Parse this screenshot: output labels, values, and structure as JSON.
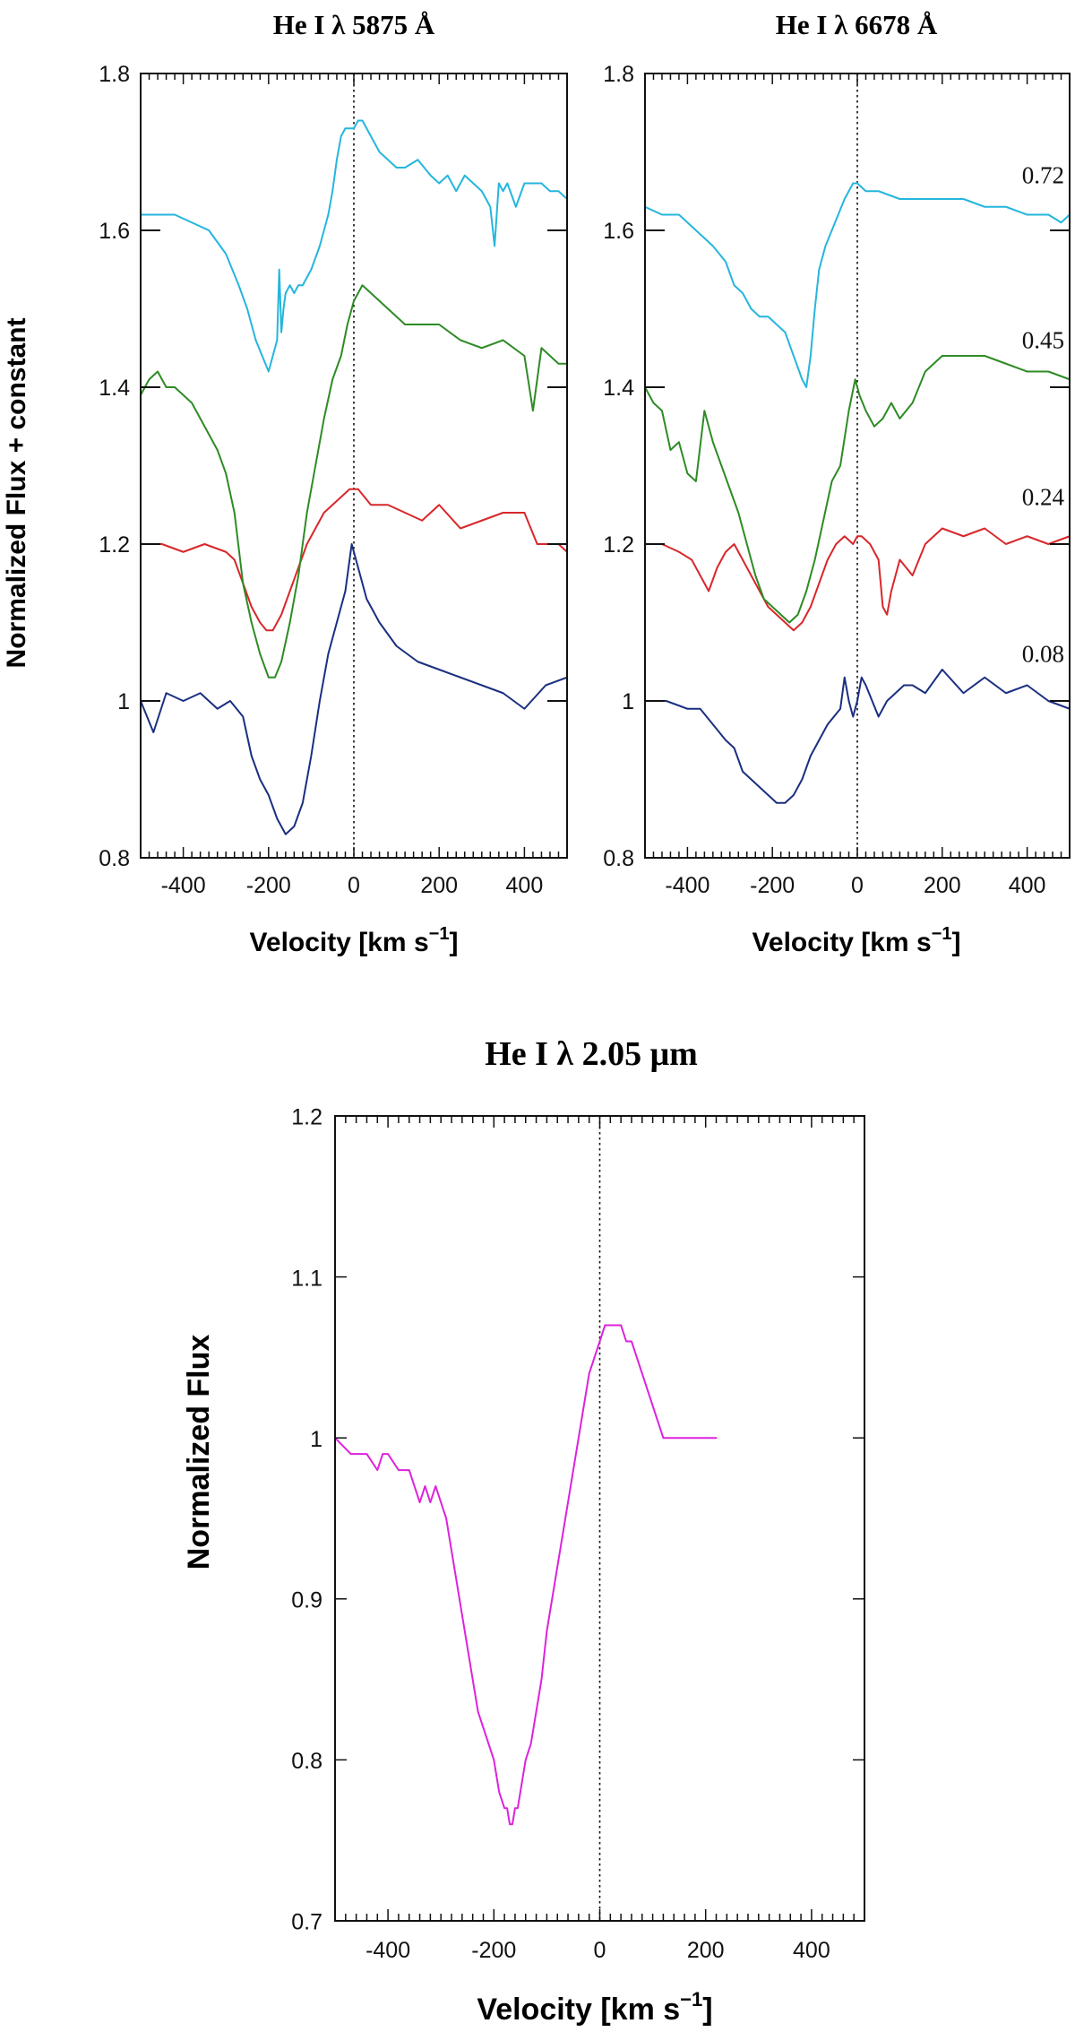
{
  "chart_data": [
    {
      "id": "he5875",
      "type": "line",
      "title": "He I λ 5875 Å",
      "xlabel": "Velocity [km s",
      "xlabel_sup": "−1",
      "xlabel_tail": "]",
      "ylabel": "Normalized Flux + constant",
      "xlim": [
        -500,
        500
      ],
      "ylim": [
        0.8,
        1.8
      ],
      "xticks": [
        -400,
        -200,
        0,
        200,
        400
      ],
      "xtick_labels": [
        "-400",
        "-200",
        "0",
        "200",
        "400"
      ],
      "yticks": [
        0.8,
        1.0,
        1.2,
        1.4,
        1.6,
        1.8
      ],
      "ytick_labels": [
        "0.8",
        "1",
        "1.2",
        "1.4",
        "1.6",
        "1.8"
      ],
      "vline_x": 0,
      "offset_markers": [
        1.0,
        1.2,
        1.4,
        1.6
      ],
      "series": [
        {
          "color": "#1a2f80",
          "offset": 0.0,
          "x": [
            -500,
            -470,
            -440,
            -400,
            -360,
            -320,
            -290,
            -260,
            -240,
            -220,
            -200,
            -180,
            -160,
            -140,
            -120,
            -100,
            -80,
            -60,
            -40,
            -20,
            -5,
            10,
            30,
            60,
            100,
            150,
            200,
            250,
            300,
            350,
            400,
            450,
            500
          ],
          "y": [
            1.0,
            0.96,
            1.01,
            1.0,
            1.01,
            0.99,
            1.0,
            0.98,
            0.93,
            0.9,
            0.88,
            0.85,
            0.83,
            0.84,
            0.87,
            0.93,
            1.0,
            1.06,
            1.1,
            1.14,
            1.2,
            1.17,
            1.13,
            1.1,
            1.07,
            1.05,
            1.04,
            1.03,
            1.02,
            1.01,
            0.99,
            1.02,
            1.03
          ]
        },
        {
          "color": "#d8272a",
          "offset": 0.0,
          "x": [
            -500,
            -450,
            -400,
            -350,
            -300,
            -280,
            -260,
            -240,
            -220,
            -205,
            -190,
            -170,
            -150,
            -130,
            -110,
            -90,
            -70,
            -50,
            -30,
            -10,
            10,
            40,
            80,
            120,
            160,
            200,
            250,
            300,
            350,
            380,
            400,
            430,
            460,
            480,
            500
          ],
          "y": [
            1.2,
            1.2,
            1.19,
            1.2,
            1.19,
            1.18,
            1.15,
            1.12,
            1.1,
            1.09,
            1.09,
            1.11,
            1.14,
            1.17,
            1.2,
            1.22,
            1.24,
            1.25,
            1.26,
            1.27,
            1.27,
            1.25,
            1.25,
            1.24,
            1.23,
            1.25,
            1.22,
            1.23,
            1.24,
            1.24,
            1.24,
            1.2,
            1.2,
            1.2,
            1.19
          ]
        },
        {
          "color": "#2e8b25",
          "offset": 0.0,
          "x": [
            -500,
            -480,
            -460,
            -440,
            -420,
            -400,
            -380,
            -350,
            -320,
            -300,
            -280,
            -260,
            -240,
            -220,
            -200,
            -185,
            -170,
            -150,
            -130,
            -110,
            -90,
            -70,
            -50,
            -30,
            -15,
            0,
            20,
            40,
            80,
            120,
            160,
            200,
            250,
            300,
            350,
            400,
            420,
            440,
            460,
            480,
            500
          ],
          "y": [
            1.39,
            1.41,
            1.42,
            1.4,
            1.4,
            1.39,
            1.38,
            1.35,
            1.32,
            1.29,
            1.24,
            1.15,
            1.1,
            1.06,
            1.03,
            1.03,
            1.05,
            1.1,
            1.16,
            1.24,
            1.3,
            1.36,
            1.41,
            1.44,
            1.48,
            1.51,
            1.53,
            1.52,
            1.5,
            1.48,
            1.48,
            1.48,
            1.46,
            1.45,
            1.46,
            1.44,
            1.37,
            1.45,
            1.44,
            1.43,
            1.43
          ]
        },
        {
          "color": "#25b6dc",
          "offset": 0.0,
          "x": [
            -500,
            -460,
            -420,
            -380,
            -340,
            -300,
            -270,
            -250,
            -230,
            -215,
            -200,
            -190,
            -180,
            -175,
            -170,
            -165,
            -160,
            -150,
            -140,
            -130,
            -120,
            -100,
            -80,
            -70,
            -60,
            -50,
            -40,
            -30,
            -20,
            -10,
            0,
            10,
            20,
            30,
            40,
            60,
            80,
            100,
            120,
            150,
            180,
            200,
            220,
            240,
            260,
            280,
            300,
            320,
            330,
            340,
            350,
            360,
            380,
            400,
            420,
            440,
            460,
            480,
            500
          ],
          "y": [
            1.62,
            1.62,
            1.62,
            1.61,
            1.6,
            1.57,
            1.53,
            1.5,
            1.46,
            1.44,
            1.42,
            1.44,
            1.46,
            1.55,
            1.47,
            1.5,
            1.52,
            1.53,
            1.52,
            1.53,
            1.53,
            1.55,
            1.58,
            1.6,
            1.62,
            1.65,
            1.69,
            1.72,
            1.73,
            1.73,
            1.73,
            1.74,
            1.74,
            1.73,
            1.72,
            1.7,
            1.69,
            1.68,
            1.68,
            1.69,
            1.67,
            1.66,
            1.67,
            1.65,
            1.67,
            1.66,
            1.65,
            1.63,
            1.58,
            1.66,
            1.65,
            1.66,
            1.63,
            1.66,
            1.66,
            1.66,
            1.65,
            1.65,
            1.64
          ]
        }
      ]
    },
    {
      "id": "he6678",
      "type": "line",
      "title": "He I λ 6678 Å",
      "xlabel": "Velocity [km s",
      "xlabel_sup": "−1",
      "xlabel_tail": "]",
      "ylabel": "",
      "xlim": [
        -500,
        500
      ],
      "ylim": [
        0.8,
        1.8
      ],
      "xticks": [
        -400,
        -200,
        0,
        200,
        400
      ],
      "xtick_labels": [
        "-400",
        "-200",
        "0",
        "200",
        "400"
      ],
      "yticks": [
        0.8,
        1.0,
        1.2,
        1.4,
        1.6,
        1.8
      ],
      "ytick_labels": [
        "0.8",
        "1",
        "1.2",
        "1.4",
        "1.6",
        "1.8"
      ],
      "vline_x": 0,
      "offset_markers": [
        1.0,
        1.2,
        1.4,
        1.6
      ],
      "phase_labels": [
        {
          "text": "0.72",
          "y": 1.66
        },
        {
          "text": "0.45",
          "y": 1.45
        },
        {
          "text": "0.24",
          "y": 1.25
        },
        {
          "text": "0.08",
          "y": 1.05
        }
      ],
      "series": [
        {
          "color": "#1a2f80",
          "offset": 0.0,
          "x": [
            -500,
            -450,
            -400,
            -370,
            -340,
            -310,
            -290,
            -270,
            -250,
            -230,
            -210,
            -190,
            -170,
            -150,
            -130,
            -110,
            -90,
            -70,
            -55,
            -40,
            -30,
            -20,
            -10,
            0,
            10,
            20,
            35,
            50,
            70,
            90,
            110,
            130,
            160,
            200,
            250,
            300,
            350,
            400,
            450,
            500
          ],
          "y": [
            1.0,
            1.0,
            0.99,
            0.99,
            0.97,
            0.95,
            0.94,
            0.91,
            0.9,
            0.89,
            0.88,
            0.87,
            0.87,
            0.88,
            0.9,
            0.93,
            0.95,
            0.97,
            0.98,
            0.99,
            1.03,
            1.0,
            0.98,
            1.0,
            1.03,
            1.02,
            1.0,
            0.98,
            1.0,
            1.01,
            1.02,
            1.02,
            1.01,
            1.04,
            1.01,
            1.03,
            1.01,
            1.02,
            1.0,
            0.99
          ]
        },
        {
          "color": "#d8272a",
          "offset": 0.0,
          "x": [
            -500,
            -460,
            -420,
            -390,
            -370,
            -350,
            -330,
            -310,
            -290,
            -270,
            -250,
            -230,
            -210,
            -190,
            -170,
            -150,
            -130,
            -110,
            -90,
            -70,
            -50,
            -30,
            -10,
            0,
            10,
            30,
            50,
            60,
            70,
            80,
            100,
            130,
            160,
            200,
            250,
            300,
            350,
            400,
            450,
            500
          ],
          "y": [
            1.2,
            1.2,
            1.19,
            1.18,
            1.16,
            1.14,
            1.17,
            1.19,
            1.2,
            1.18,
            1.16,
            1.14,
            1.12,
            1.11,
            1.1,
            1.09,
            1.1,
            1.12,
            1.15,
            1.18,
            1.2,
            1.21,
            1.2,
            1.21,
            1.21,
            1.2,
            1.18,
            1.12,
            1.11,
            1.14,
            1.18,
            1.16,
            1.2,
            1.22,
            1.21,
            1.22,
            1.2,
            1.21,
            1.2,
            1.21
          ]
        },
        {
          "color": "#2e8b25",
          "offset": 0.0,
          "x": [
            -500,
            -480,
            -460,
            -440,
            -420,
            -400,
            -380,
            -360,
            -340,
            -320,
            -300,
            -280,
            -260,
            -240,
            -220,
            -200,
            -180,
            -160,
            -140,
            -120,
            -100,
            -80,
            -60,
            -40,
            -20,
            -5,
            5,
            20,
            40,
            60,
            80,
            100,
            130,
            160,
            200,
            250,
            300,
            350,
            400,
            450,
            500
          ],
          "y": [
            1.4,
            1.38,
            1.37,
            1.32,
            1.33,
            1.29,
            1.28,
            1.37,
            1.33,
            1.3,
            1.27,
            1.24,
            1.2,
            1.16,
            1.13,
            1.12,
            1.11,
            1.1,
            1.11,
            1.14,
            1.18,
            1.23,
            1.28,
            1.3,
            1.37,
            1.41,
            1.39,
            1.37,
            1.35,
            1.36,
            1.38,
            1.36,
            1.38,
            1.42,
            1.44,
            1.44,
            1.44,
            1.43,
            1.42,
            1.42,
            1.41
          ]
        },
        {
          "color": "#25b6dc",
          "offset": 0.0,
          "x": [
            -500,
            -460,
            -420,
            -380,
            -340,
            -310,
            -290,
            -270,
            -250,
            -230,
            -210,
            -190,
            -170,
            -150,
            -130,
            -120,
            -110,
            -100,
            -90,
            -75,
            -60,
            -45,
            -30,
            -20,
            -10,
            0,
            20,
            50,
            100,
            150,
            200,
            250,
            300,
            350,
            400,
            450,
            480,
            500
          ],
          "y": [
            1.63,
            1.62,
            1.62,
            1.6,
            1.58,
            1.56,
            1.53,
            1.52,
            1.5,
            1.49,
            1.49,
            1.48,
            1.47,
            1.44,
            1.41,
            1.4,
            1.44,
            1.5,
            1.55,
            1.58,
            1.6,
            1.62,
            1.64,
            1.65,
            1.66,
            1.66,
            1.65,
            1.65,
            1.64,
            1.64,
            1.64,
            1.64,
            1.63,
            1.63,
            1.62,
            1.62,
            1.61,
            1.62
          ]
        }
      ]
    },
    {
      "id": "he205",
      "type": "line",
      "title": "He I  λ 2.05  μm",
      "xlabel": "Velocity [km s",
      "xlabel_sup": "−1",
      "xlabel_tail": "]",
      "ylabel": "Normalized Flux",
      "xlim": [
        -500,
        500
      ],
      "ylim": [
        0.7,
        1.2
      ],
      "xticks": [
        -400,
        -200,
        0,
        200,
        400
      ],
      "xtick_labels": [
        "-400",
        "-200",
        "0",
        "200",
        "400"
      ],
      "yticks": [
        0.7,
        0.8,
        0.9,
        1.0,
        1.1,
        1.2
      ],
      "ytick_labels": [
        "0.7",
        "0.8",
        "0.9",
        "1",
        "1.1",
        "1.2"
      ],
      "vline_x": 0,
      "series": [
        {
          "color": "#dd22dd",
          "offset": 0.0,
          "x": [
            -500,
            -470,
            -440,
            -420,
            -410,
            -400,
            -380,
            -360,
            -350,
            -340,
            -330,
            -320,
            -310,
            -300,
            -290,
            -280,
            -270,
            -260,
            -250,
            -240,
            -230,
            -220,
            -210,
            -200,
            -190,
            -180,
            -175,
            -170,
            -165,
            -160,
            -155,
            -150,
            -145,
            -140,
            -130,
            -120,
            -110,
            -100,
            -80,
            -60,
            -40,
            -20,
            0,
            10,
            20,
            30,
            40,
            50,
            60,
            70,
            80,
            100,
            120,
            140,
            160,
            180,
            200,
            220
          ],
          "y": [
            1.0,
            0.99,
            0.99,
            0.98,
            0.99,
            0.99,
            0.98,
            0.98,
            0.97,
            0.96,
            0.97,
            0.96,
            0.97,
            0.96,
            0.95,
            0.93,
            0.91,
            0.89,
            0.87,
            0.85,
            0.83,
            0.82,
            0.81,
            0.8,
            0.78,
            0.77,
            0.77,
            0.76,
            0.76,
            0.77,
            0.77,
            0.78,
            0.79,
            0.8,
            0.81,
            0.83,
            0.85,
            0.88,
            0.92,
            0.96,
            1.0,
            1.04,
            1.06,
            1.07,
            1.07,
            1.07,
            1.07,
            1.06,
            1.06,
            1.05,
            1.04,
            1.02,
            1.0,
            1.0,
            1.0,
            1.0,
            1.0,
            1.0
          ]
        }
      ]
    }
  ]
}
